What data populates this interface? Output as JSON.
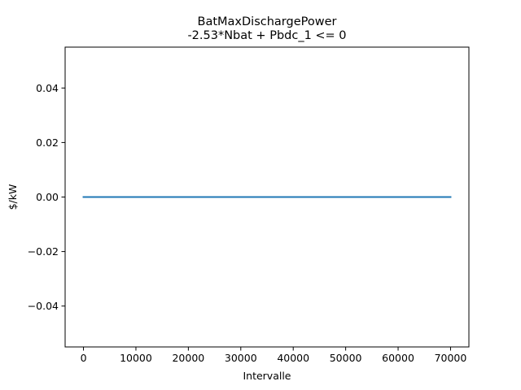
{
  "chart_data": {
    "type": "line",
    "title": "BatMaxDischargePower",
    "subtitle": "-2.53*Nbat + Pbdc_1 <= 0",
    "xlabel": "Intervalle",
    "ylabel": "$/kW",
    "xlim": [
      -3500,
      73500
    ],
    "ylim": [
      -0.055,
      0.055
    ],
    "x_ticks": [
      0,
      10000,
      20000,
      30000,
      40000,
      50000,
      60000,
      70000
    ],
    "x_tick_labels": [
      "0",
      "10000",
      "20000",
      "30000",
      "40000",
      "50000",
      "60000",
      "70000"
    ],
    "y_ticks": [
      -0.04,
      -0.02,
      0.0,
      0.02,
      0.04
    ],
    "y_tick_labels": [
      "−0.04",
      "−0.02",
      "0.00",
      "0.02",
      "0.04"
    ],
    "grid": false,
    "series": [
      {
        "color": "#1f77b4",
        "x": [
          0,
          70000
        ],
        "y": [
          0,
          0
        ]
      }
    ]
  }
}
